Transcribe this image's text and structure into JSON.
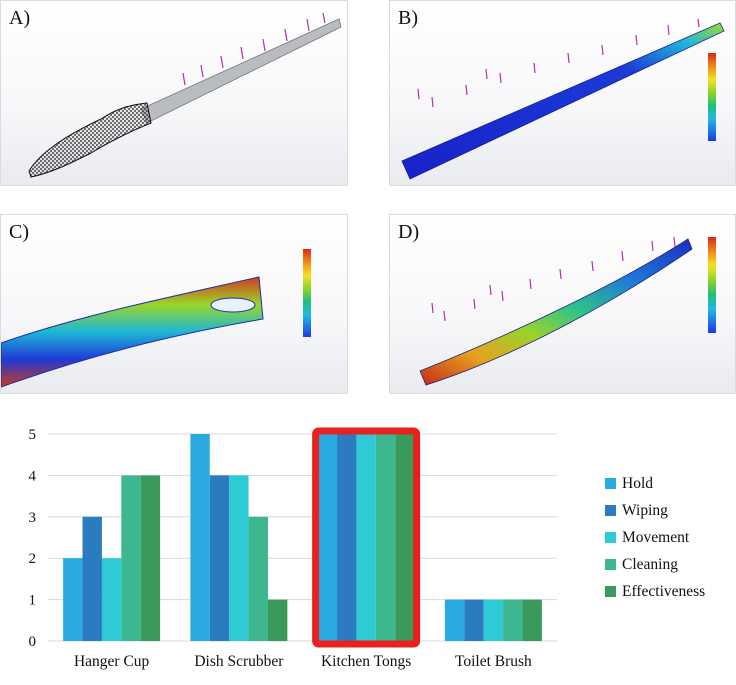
{
  "panels": [
    {
      "label": "A)"
    },
    {
      "label": "B)"
    },
    {
      "label": "C)"
    },
    {
      "label": "D)"
    }
  ],
  "chart_data": {
    "type": "bar",
    "categories": [
      "Hanger Cup",
      "Dish Scrubber",
      "Kitchen Tongs",
      "Toilet Brush"
    ],
    "series": [
      {
        "name": "Hold",
        "color": "#29ABE2",
        "values": [
          2,
          5,
          5,
          1
        ]
      },
      {
        "name": "Wiping",
        "color": "#2B7BC0",
        "values": [
          3,
          4,
          5,
          1
        ]
      },
      {
        "name": "Movement",
        "color": "#2ECAD6",
        "values": [
          2,
          4,
          5,
          1
        ]
      },
      {
        "name": "Cleaning",
        "color": "#3DB88E",
        "values": [
          4,
          3,
          5,
          1
        ]
      },
      {
        "name": "Effectiveness",
        "color": "#3A9A5C",
        "values": [
          4,
          1,
          5,
          1
        ]
      }
    ],
    "yticks": [
      0,
      1,
      2,
      3,
      4,
      5
    ],
    "ylim": [
      0,
      5
    ],
    "grid": true,
    "legend_position": "right",
    "highlight_category": "Kitchen Tongs",
    "highlight_color": "#E8201E"
  }
}
